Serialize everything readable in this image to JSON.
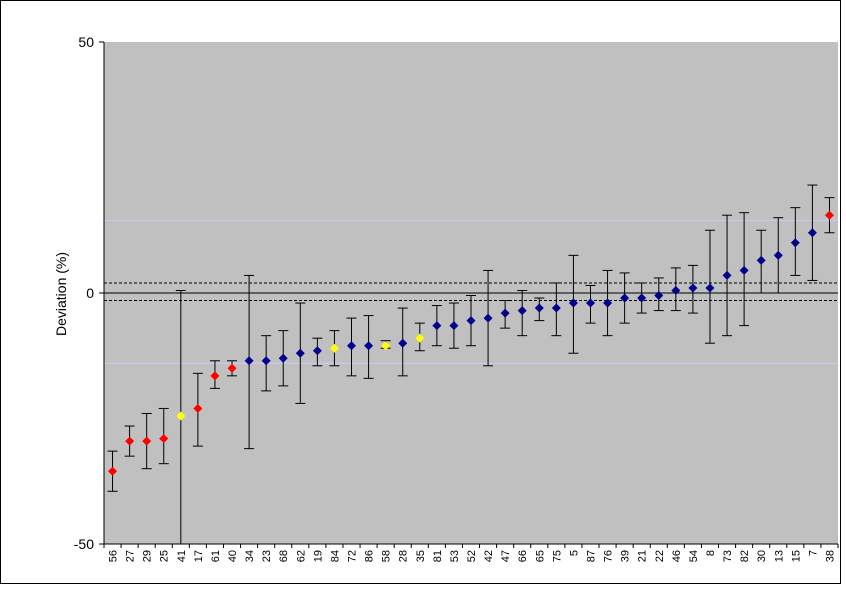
{
  "chart_data": {
    "type": "scatter",
    "title": "",
    "ylabel": "Deviation (%)",
    "xlabel": "",
    "ylim": [
      -50,
      50
    ],
    "yticks": [
      -50,
      0,
      50
    ],
    "grid": false,
    "legend": "none",
    "reference_lines": {
      "solid_upper": 14.5,
      "solid_lower": -14.0,
      "dotted_upper": 2.0,
      "dotted_lower": -1.5,
      "zero": 0
    },
    "colors": {
      "plot_background": "#c0c0c0",
      "blue": "#00008b",
      "red": "#ff0000",
      "yellow": "#ffff00",
      "reference_line": "#ccccff",
      "error_bar": "#000000"
    },
    "points": [
      {
        "label": "56",
        "y": -35.5,
        "low": -39.5,
        "high": -31.5,
        "color": "red"
      },
      {
        "label": "27",
        "y": -29.5,
        "low": -32.5,
        "high": -26.5,
        "color": "red"
      },
      {
        "label": "29",
        "y": -29.5,
        "low": -35.0,
        "high": -24.0,
        "color": "red"
      },
      {
        "label": "25",
        "y": -29.0,
        "low": -34.0,
        "high": -23.0,
        "color": "red"
      },
      {
        "label": "41",
        "y": -24.5,
        "low": -50.0,
        "high": 0.5,
        "color": "yellow"
      },
      {
        "label": "17",
        "y": -23.0,
        "low": -30.5,
        "high": -16.0,
        "color": "red"
      },
      {
        "label": "61",
        "y": -16.5,
        "low": -19.0,
        "high": -13.5,
        "color": "red"
      },
      {
        "label": "40",
        "y": -15.0,
        "low": -16.5,
        "high": -13.5,
        "color": "red"
      },
      {
        "label": "34",
        "y": -13.5,
        "low": -31.0,
        "high": 3.5,
        "color": "blue"
      },
      {
        "label": "23",
        "y": -13.5,
        "low": -19.5,
        "high": -8.5,
        "color": "blue"
      },
      {
        "label": "68",
        "y": -13.0,
        "low": -18.5,
        "high": -7.5,
        "color": "blue"
      },
      {
        "label": "62",
        "y": -12.0,
        "low": -22.0,
        "high": -2.0,
        "color": "blue"
      },
      {
        "label": "19",
        "y": -11.5,
        "low": -14.5,
        "high": -9.0,
        "color": "blue"
      },
      {
        "label": "84",
        "y": -11.0,
        "low": -14.5,
        "high": -7.5,
        "color": "yellow"
      },
      {
        "label": "72",
        "y": -10.5,
        "low": -16.5,
        "high": -5.0,
        "color": "blue"
      },
      {
        "label": "86",
        "y": -10.5,
        "low": -17.0,
        "high": -4.5,
        "color": "blue"
      },
      {
        "label": "58",
        "y": -10.5,
        "low": -11.0,
        "high": -9.5,
        "color": "yellow"
      },
      {
        "label": "28",
        "y": -10.0,
        "low": -16.5,
        "high": -3.0,
        "color": "blue"
      },
      {
        "label": "35",
        "y": -9.0,
        "low": -11.5,
        "high": -6.0,
        "color": "yellow"
      },
      {
        "label": "81",
        "y": -6.5,
        "low": -10.5,
        "high": -2.5,
        "color": "blue"
      },
      {
        "label": "53",
        "y": -6.5,
        "low": -11.0,
        "high": -2.0,
        "color": "blue"
      },
      {
        "label": "52",
        "y": -5.5,
        "low": -10.5,
        "high": -0.5,
        "color": "blue"
      },
      {
        "label": "42",
        "y": -5.0,
        "low": -14.5,
        "high": 4.5,
        "color": "blue"
      },
      {
        "label": "47",
        "y": -4.0,
        "low": -7.0,
        "high": -1.5,
        "color": "blue"
      },
      {
        "label": "66",
        "y": -3.5,
        "low": -8.5,
        "high": 0.5,
        "color": "blue"
      },
      {
        "label": "65",
        "y": -3.0,
        "low": -5.5,
        "high": -1.0,
        "color": "blue"
      },
      {
        "label": "75",
        "y": -3.0,
        "low": -8.5,
        "high": 2.0,
        "color": "blue"
      },
      {
        "label": "5",
        "y": -2.0,
        "low": -12.0,
        "high": 7.5,
        "color": "blue"
      },
      {
        "label": "87",
        "y": -2.0,
        "low": -6.0,
        "high": 1.5,
        "color": "blue"
      },
      {
        "label": "76",
        "y": -2.0,
        "low": -8.5,
        "high": 4.5,
        "color": "blue"
      },
      {
        "label": "39",
        "y": -1.0,
        "low": -6.0,
        "high": 4.0,
        "color": "blue"
      },
      {
        "label": "21",
        "y": -1.0,
        "low": -4.0,
        "high": 2.0,
        "color": "blue"
      },
      {
        "label": "22",
        "y": -0.5,
        "low": -3.5,
        "high": 3.0,
        "color": "blue"
      },
      {
        "label": "46",
        "y": 0.5,
        "low": -3.5,
        "high": 5.0,
        "color": "blue"
      },
      {
        "label": "54",
        "y": 1.0,
        "low": -4.0,
        "high": 5.5,
        "color": "blue"
      },
      {
        "label": "8",
        "y": 1.0,
        "low": -10.0,
        "high": 12.5,
        "color": "blue"
      },
      {
        "label": "73",
        "y": 3.5,
        "low": -8.5,
        "high": 15.5,
        "color": "blue"
      },
      {
        "label": "82",
        "y": 4.5,
        "low": -6.5,
        "high": 16.0,
        "color": "blue"
      },
      {
        "label": "30",
        "y": 6.5,
        "low": 0.0,
        "high": 12.5,
        "color": "blue"
      },
      {
        "label": "13",
        "y": 7.5,
        "low": 0.0,
        "high": 15.0,
        "color": "blue"
      },
      {
        "label": "15",
        "y": 10.0,
        "low": 3.5,
        "high": 17.0,
        "color": "blue"
      },
      {
        "label": "7",
        "y": 12.0,
        "low": 2.5,
        "high": 21.5,
        "color": "blue"
      },
      {
        "label": "38",
        "y": 15.5,
        "low": 12.0,
        "high": 19.0,
        "color": "red"
      }
    ]
  }
}
